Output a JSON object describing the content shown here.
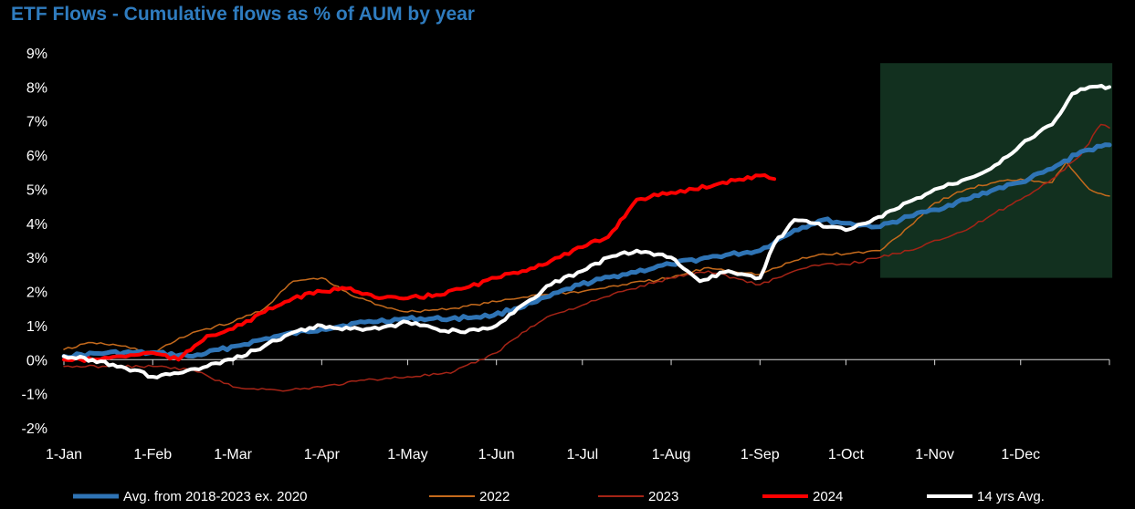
{
  "chart_data": {
    "type": "line",
    "title": "ETF Flows - Cumulative flows as % of AUM by year",
    "xlabel": "",
    "ylabel": "",
    "x_ticks": [
      "1-Jan",
      "1-Feb",
      "1-Mar",
      "1-Apr",
      "1-May",
      "1-Jun",
      "1-Jul",
      "1-Aug",
      "1-Sep",
      "1-Oct",
      "1-Nov",
      "1-Dec"
    ],
    "x_tick_days": [
      0,
      31,
      59,
      90,
      120,
      151,
      181,
      212,
      243,
      273,
      304,
      334
    ],
    "x_range_days": [
      0,
      365
    ],
    "y_ticks": [
      "9%",
      "8%",
      "7%",
      "6%",
      "5%",
      "4%",
      "3%",
      "2%",
      "1%",
      "0%",
      "-1%",
      "-2%"
    ],
    "y_tick_values": [
      9,
      8,
      7,
      6,
      5,
      4,
      3,
      2,
      1,
      0,
      -1,
      -2
    ],
    "ylim": [
      -2,
      9
    ],
    "grid": false,
    "legend_position": "bottom",
    "highlight": {
      "x_start_day": 285,
      "x_end_day": 366,
      "y_start": 2.4,
      "y_end": 8.7,
      "color": "#12301f"
    },
    "series": [
      {
        "name": "Avg. from 2018-2023 ex. 2020",
        "color": "#2f74b5",
        "width": 5,
        "x": [
          0,
          15,
          30,
          45,
          60,
          75,
          90,
          105,
          120,
          135,
          150,
          165,
          180,
          195,
          212,
          225,
          243,
          255,
          265,
          273,
          285,
          295,
          304,
          315,
          325,
          334,
          345,
          355,
          365
        ],
        "y": [
          0.1,
          0.2,
          0.2,
          0.1,
          0.4,
          0.7,
          0.9,
          1.1,
          1.2,
          1.2,
          1.3,
          1.7,
          2.2,
          2.5,
          2.8,
          3.0,
          3.2,
          3.8,
          4.1,
          4.0,
          3.9,
          4.2,
          4.4,
          4.7,
          5.0,
          5.2,
          5.6,
          6.1,
          6.3
        ]
      },
      {
        "name": "2022",
        "color": "#c56a1c",
        "width": 1.5,
        "x": [
          0,
          10,
          20,
          31,
          45,
          59,
          70,
          80,
          90,
          100,
          110,
          120,
          135,
          151,
          165,
          181,
          195,
          212,
          225,
          243,
          255,
          265,
          273,
          285,
          295,
          304,
          315,
          325,
          334,
          345,
          350,
          358,
          365
        ],
        "y": [
          0.3,
          0.5,
          0.4,
          0.2,
          0.8,
          1.1,
          1.5,
          2.3,
          2.4,
          1.9,
          1.6,
          1.4,
          1.5,
          1.7,
          1.9,
          2.0,
          2.2,
          2.4,
          2.7,
          2.5,
          2.9,
          3.1,
          3.1,
          3.2,
          3.9,
          4.6,
          5.0,
          5.2,
          5.3,
          5.2,
          5.8,
          5.0,
          4.8
        ]
      },
      {
        "name": "2023",
        "color": "#a52416",
        "width": 1.5,
        "x": [
          0,
          15,
          31,
          45,
          59,
          75,
          90,
          105,
          120,
          135,
          151,
          160,
          170,
          181,
          195,
          212,
          225,
          243,
          255,
          265,
          273,
          285,
          295,
          304,
          315,
          325,
          334,
          345,
          355,
          362,
          365
        ],
        "y": [
          -0.2,
          -0.2,
          -0.2,
          -0.3,
          -0.8,
          -0.9,
          -0.8,
          -0.6,
          -0.5,
          -0.4,
          0.2,
          0.8,
          1.3,
          1.6,
          2.0,
          2.4,
          2.6,
          2.2,
          2.6,
          2.8,
          2.8,
          3.0,
          3.2,
          3.5,
          3.8,
          4.3,
          4.7,
          5.3,
          6.0,
          6.9,
          6.8
        ]
      },
      {
        "name": "2024",
        "color": "#ff0000",
        "width": 4,
        "x": [
          0,
          10,
          20,
          31,
          40,
          50,
          59,
          70,
          80,
          90,
          100,
          110,
          120,
          130,
          140,
          151,
          160,
          170,
          181,
          190,
          200,
          212,
          220,
          230,
          243,
          248
        ],
        "y": [
          0.0,
          0.0,
          0.1,
          0.2,
          0.0,
          0.7,
          0.9,
          1.4,
          1.8,
          2.0,
          2.1,
          1.8,
          1.8,
          1.9,
          2.1,
          2.4,
          2.6,
          2.9,
          3.3,
          3.6,
          4.7,
          4.9,
          5.0,
          5.2,
          5.4,
          5.3
        ]
      },
      {
        "name": "14 yrs Avg.",
        "color": "#ffffff",
        "width": 4,
        "x": [
          0,
          10,
          20,
          31,
          40,
          50,
          59,
          70,
          80,
          90,
          100,
          110,
          120,
          130,
          140,
          151,
          160,
          170,
          181,
          190,
          200,
          212,
          222,
          232,
          243,
          248,
          255,
          262,
          268,
          273,
          280,
          290,
          304,
          315,
          325,
          334,
          345,
          352,
          358,
          365
        ],
        "y": [
          0.1,
          0.0,
          -0.2,
          -0.5,
          -0.4,
          -0.2,
          0.0,
          0.4,
          0.8,
          1.0,
          0.9,
          0.9,
          1.1,
          0.9,
          0.8,
          1.0,
          1.6,
          2.2,
          2.6,
          3.0,
          3.2,
          3.0,
          2.3,
          2.6,
          2.4,
          3.4,
          4.1,
          4.0,
          3.9,
          3.8,
          4.0,
          4.4,
          5.0,
          5.3,
          5.7,
          6.3,
          6.9,
          7.8,
          8.0,
          8.0
        ]
      }
    ]
  }
}
